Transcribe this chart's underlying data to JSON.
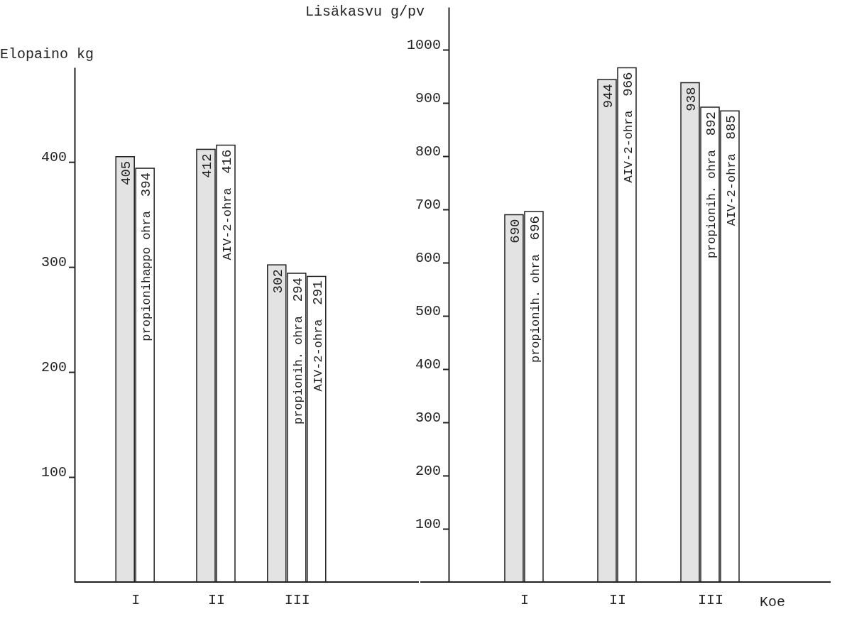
{
  "chart_data": [
    {
      "type": "bar",
      "ylabel": "Elopaino kg",
      "categories": [
        "I",
        "II",
        "III"
      ],
      "ylim": [
        0,
        490
      ],
      "yticks": [
        100,
        200,
        300,
        400
      ],
      "data_labels": true,
      "series": [
        {
          "color": "#e3e3e3",
          "values": [
            405,
            412,
            302
          ]
        },
        {
          "name": "propionihappo ohra",
          "color": "#ffffff",
          "values": [
            394,
            null,
            null
          ]
        },
        {
          "name": "propionih. ohra",
          "color": "#ffffff",
          "values": [
            null,
            null,
            294
          ]
        },
        {
          "name": "AIV-2-ohra",
          "color": "#ffffff",
          "values": [
            null,
            416,
            291
          ]
        }
      ]
    },
    {
      "type": "bar",
      "ylabel": "Lisäkasvu g/pv",
      "xlabel": "Koe",
      "categories": [
        "I",
        "II",
        "III"
      ],
      "ylim": [
        0,
        1080
      ],
      "yticks": [
        100,
        200,
        300,
        400,
        500,
        600,
        700,
        800,
        900,
        1000
      ],
      "data_labels": true,
      "series": [
        {
          "color": "#e3e3e3",
          "values": [
            690,
            944,
            938
          ]
        },
        {
          "name": "propionih. ohra",
          "color": "#ffffff",
          "values": [
            696,
            null,
            892
          ]
        },
        {
          "name": "AIV-2-ohra",
          "color": "#ffffff",
          "values": [
            null,
            966,
            885
          ]
        }
      ]
    }
  ]
}
